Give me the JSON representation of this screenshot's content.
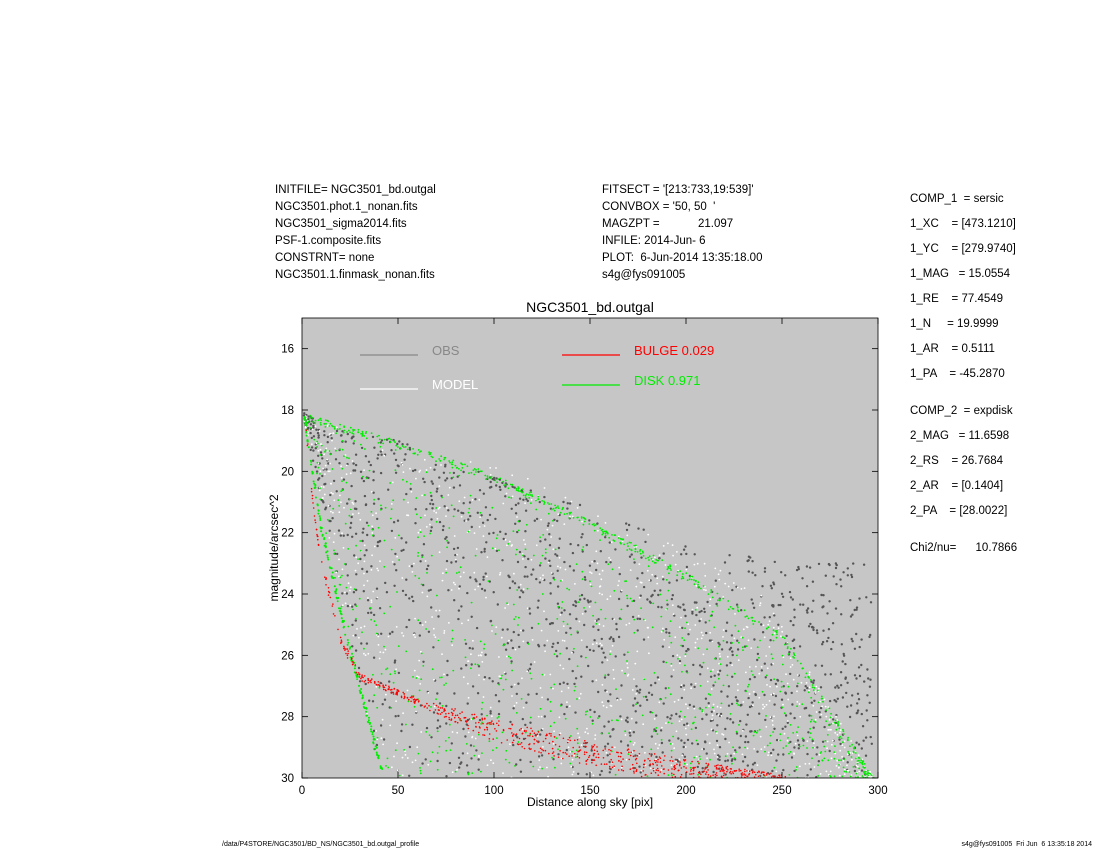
{
  "header_left": [
    "INITFILE= NGC3501_bd.outgal",
    "NGC3501.phot.1_nonan.fits",
    "NGC3501_sigma2014.fits",
    "PSF-1.composite.fits",
    "CONSTRNT= none",
    "NGC3501.1.finmask_nonan.fits"
  ],
  "header_mid": [
    "FITSECT = '[213:733,19:539]'",
    "CONVBOX = '50, 50  '",
    "MAGZPT =            21.097",
    "INFILE: 2014-Jun- 6",
    "PLOT:  6-Jun-2014 13:35:18.00",
    "s4g@fys091005"
  ],
  "params": {
    "comp1": [
      "COMP_1  = sersic",
      "1_XC    = [473.1210]",
      "1_YC    = [279.9740]",
      "1_MAG   = 15.0554",
      "1_RE    = 77.4549",
      "1_N     = 19.9999",
      "1_AR    = 0.5111",
      "1_PA    = -45.2870"
    ],
    "comp2": [
      "COMP_2  = expdisk",
      "2_MAG   = 11.6598",
      "2_RS    = 26.7684",
      "2_AR    = [0.1404]",
      "2_PA    = [28.0022]"
    ],
    "chi2": "Chi2/nu=      10.7866"
  },
  "footer": {
    "left": "/data/P4STORE/NGC3501/BD_NS/NGC3501_bd.outgal_profile",
    "right": "s4g@fys091005  Fri Jun  6 13:35:18 2014"
  },
  "colors": {
    "plot_bg": "#c6c6c6",
    "obs": "#555555",
    "model": "#ffffff",
    "bulge": "#ff0000",
    "disk": "#00ee00"
  },
  "chart_data": {
    "type": "scatter",
    "title": "NGC3501_bd.outgal",
    "xlabel": "Distance along sky [pix]",
    "ylabel": "magnitude/arcsec^2",
    "xlim": [
      0,
      300
    ],
    "ylim": [
      30,
      15
    ],
    "y_inverted": true,
    "grid": false,
    "x_ticks": [
      0,
      50,
      100,
      150,
      200,
      250,
      300
    ],
    "y_ticks": [
      16,
      18,
      20,
      22,
      24,
      26,
      28,
      30
    ],
    "legend_placement": "top",
    "legend": [
      {
        "label": "OBS",
        "color": "#888888"
      },
      {
        "label": "MODEL",
        "color": "#ffffff"
      },
      {
        "label": "BULGE  0.029",
        "color": "#ff0000"
      },
      {
        "label": "DISK  0.971",
        "color": "#00ee00"
      }
    ],
    "series": [
      {
        "name": "OBS",
        "envelope_upper": [
          [
            1,
            18.1
          ],
          [
            15,
            18.6
          ],
          [
            50,
            19.0
          ],
          [
            100,
            20.2
          ],
          [
            150,
            21.2
          ],
          [
            195,
            22.3
          ],
          [
            250,
            23.0
          ],
          [
            290,
            23.0
          ]
        ],
        "envelope_lower_approx": [
          [
            1,
            18.3
          ],
          [
            40,
            30.0
          ],
          [
            300,
            30.0
          ]
        ]
      },
      {
        "name": "MODEL",
        "envelope_upper": [
          [
            1,
            18.1
          ],
          [
            20,
            18.6
          ],
          [
            60,
            19.2
          ],
          [
            120,
            20.2
          ],
          [
            180,
            21.9
          ],
          [
            240,
            24.0
          ],
          [
            298,
            30.0
          ]
        ],
        "envelope_lower": [
          [
            1,
            18.3
          ],
          [
            40,
            30.0
          ],
          [
            298,
            30.0
          ]
        ]
      },
      {
        "name": "BULGE  0.029",
        "inner_edge": [
          [
            2,
            18.3
          ],
          [
            5,
            20.5
          ],
          [
            10,
            22.8
          ],
          [
            20,
            25.3
          ],
          [
            30,
            26.6
          ],
          [
            60,
            27.4
          ],
          [
            100,
            28.1
          ],
          [
            150,
            28.8
          ],
          [
            200,
            29.4
          ],
          [
            250,
            29.9
          ]
        ],
        "outer_edge": [
          [
            25,
            25.6
          ],
          [
            30,
            26.2
          ],
          [
            50,
            27.3
          ],
          [
            100,
            28.8
          ],
          [
            150,
            29.6
          ],
          [
            180,
            30.0
          ]
        ]
      },
      {
        "name": "DISK  0.971",
        "upper_edge": [
          [
            1,
            18.1
          ],
          [
            50,
            19.0
          ],
          [
            100,
            20.1
          ],
          [
            150,
            21.6
          ],
          [
            200,
            23.3
          ],
          [
            250,
            25.3
          ],
          [
            298,
            30.0
          ]
        ],
        "lower_edge": [
          [
            1,
            18.3
          ],
          [
            10,
            22.0
          ],
          [
            25,
            26.0
          ],
          [
            42,
            30.0
          ]
        ]
      }
    ]
  }
}
